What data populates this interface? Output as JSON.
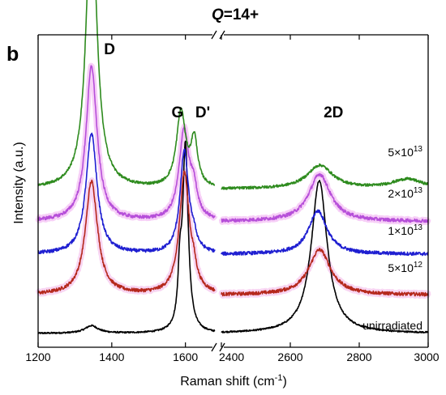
{
  "figure": {
    "panel_label": "b",
    "title_italic": "Q",
    "title_rest": "=14+"
  },
  "chart_data": {
    "type": "line",
    "title": "Q=14+",
    "xlabel_main": "Raman shift (cm",
    "xlabel_sup": "-1",
    "xlabel_close": ")",
    "ylabel": "Intensity (a.u.)",
    "axis_break": true,
    "x_segments": [
      {
        "xlim": [
          1200,
          1680
        ],
        "ticks": [
          1200,
          1400,
          1600
        ],
        "tick_labels": [
          "1200",
          "1400",
          "1600"
        ]
      },
      {
        "xlim": [
          2400,
          3000
        ],
        "ticks": [
          2400,
          2600,
          2800,
          3000
        ],
        "tick_labels": [
          "2400",
          "2600",
          "2800",
          "3000"
        ]
      }
    ],
    "y_ticks_shown": false,
    "peak_labels": [
      {
        "text": "D",
        "x": 1350
      },
      {
        "text": "G",
        "x": 1585
      },
      {
        "text": "D'",
        "x": 1625
      },
      {
        "text": "2D",
        "x": 2690
      }
    ],
    "series": [
      {
        "name": "unirradiated",
        "label_text": "unirradiated",
        "label_base": "",
        "label_exp": "",
        "color": "#000000",
        "band": "",
        "offset": 0,
        "baseline": 0.0,
        "noise": 0.04,
        "peaks": [
          [
            1345,
            0.2,
            22
          ],
          [
            1585,
            1.3,
            6
          ],
          [
            1600,
            4.9,
            9
          ],
          [
            2684,
            4.05,
            28
          ]
        ]
      },
      {
        "name": "5×10^12",
        "label_text": "",
        "label_base": "5×10",
        "label_exp": "12",
        "color": "#b5281c",
        "band": "#f2b3e8",
        "offset": 1.02,
        "baseline": 0.0,
        "noise": 0.09,
        "peaks": [
          [
            1345,
            3.0,
            20
          ],
          [
            1597,
            3.2,
            16
          ],
          [
            1622,
            0.4,
            10
          ],
          [
            2685,
            1.2,
            38
          ]
        ]
      },
      {
        "name": "1×10^13",
        "label_text": "",
        "label_base": "1×10",
        "label_exp": "13",
        "color": "#1f1fd1",
        "band": "",
        "offset": 2.1,
        "baseline": 0.0,
        "noise": 0.09,
        "peaks": [
          [
            1345,
            3.2,
            18
          ],
          [
            1597,
            2.7,
            14
          ],
          [
            1622,
            0.3,
            10
          ],
          [
            2680,
            1.15,
            32
          ]
        ]
      },
      {
        "name": "2×10^13",
        "label_text": "",
        "label_base": "2×10",
        "label_exp": "13",
        "color": "#b64fd9",
        "band": "#f0a8f0",
        "offset": 2.92,
        "baseline": 0.05,
        "noise": 0.09,
        "peaks": [
          [
            1345,
            4.1,
            18
          ],
          [
            1596,
            2.35,
            16
          ],
          [
            1622,
            0.7,
            12
          ],
          [
            2685,
            1.25,
            38
          ]
        ]
      },
      {
        "name": "5×10^13",
        "label_text": "",
        "label_base": "5×10",
        "label_exp": "13",
        "color": "#2e8b1e",
        "band": "",
        "offset": 3.78,
        "baseline": 0.05,
        "noise": 0.07,
        "peaks": [
          [
            1345,
            7.7,
            17
          ],
          [
            1588,
            2.0,
            15
          ],
          [
            1624,
            1.2,
            11
          ],
          [
            2686,
            0.62,
            45
          ],
          [
            2940,
            0.25,
            55
          ]
        ]
      }
    ]
  }
}
